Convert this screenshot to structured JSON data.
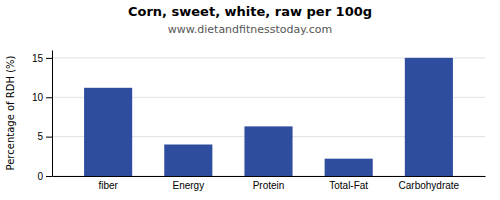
{
  "chart_data": {
    "type": "bar",
    "title": "Corn, sweet, white, raw per 100g",
    "subtitle": "www.dietandfitnesstoday.com",
    "categories": [
      "fiber",
      "Energy",
      "Protein",
      "Total-Fat",
      "Carbohydrate"
    ],
    "values": [
      11.2,
      4.0,
      6.3,
      2.2,
      15.0
    ],
    "color": "#2e4d9e",
    "ylabel": "Percentage of RDH (%)",
    "ylim": [
      0,
      16
    ],
    "yticks": [
      0,
      5,
      10,
      15
    ],
    "grid": true
  }
}
